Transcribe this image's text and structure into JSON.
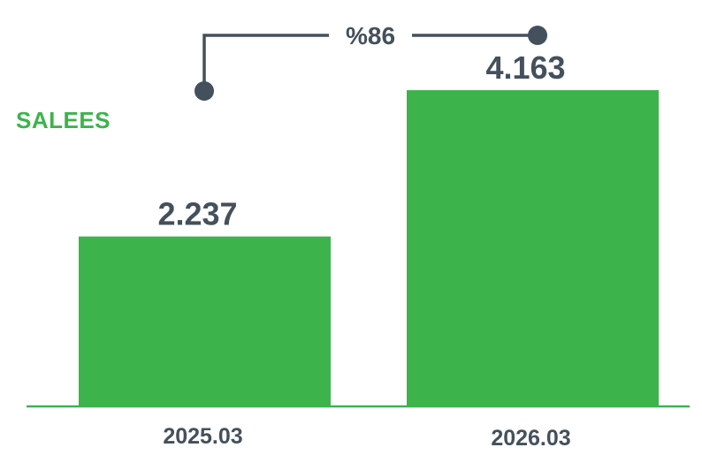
{
  "chart_data": {
    "type": "bar",
    "categories": [
      "2025.03",
      "2026.03"
    ],
    "values": [
      2.237,
      4.163
    ],
    "value_labels": [
      "2.237",
      "4.163"
    ],
    "ylim": [
      0,
      5.35
    ],
    "series": [
      {
        "name": "SALEES",
        "values": [
          2.237,
          4.163
        ]
      }
    ],
    "growth_annotation": "%86",
    "grid": false,
    "colors": {
      "bar": "#3cb44b",
      "axis": "#3cb44b",
      "text": "#44505c",
      "series_label": "#3cb44b",
      "annotation_line": "#44505c"
    }
  }
}
